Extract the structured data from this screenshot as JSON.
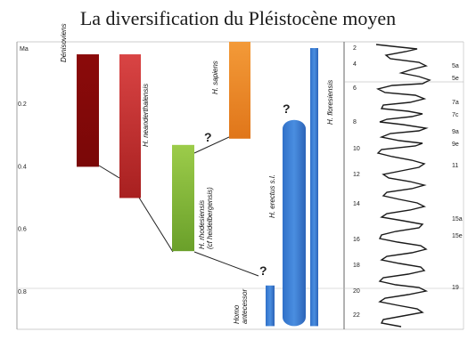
{
  "title": "La diversification du Pléistocène moyen",
  "axis": {
    "label": "Ma",
    "ticks": [
      {
        "value": 0.2,
        "label": "0.2"
      },
      {
        "value": 0.4,
        "label": "0.4"
      },
      {
        "value": 0.6,
        "label": "0.6"
      },
      {
        "value": 0.8,
        "label": "0.8"
      }
    ]
  },
  "species": [
    {
      "id": "denisoviens",
      "label": "Dénisoviens",
      "start_ma": 0.4,
      "end_ma": 0.04,
      "color": "#8b0a0a",
      "color2": "#a01515"
    },
    {
      "id": "neanderthalensis",
      "label": "H. neanderthalensis",
      "start_ma": 0.5,
      "end_ma": 0.04,
      "color": "#d23a3a",
      "color2": "#b82828"
    },
    {
      "id": "rhodesiensis",
      "label": "H. rhodesiensis",
      "label2": "(cf heidelbergensis)",
      "start_ma": 0.67,
      "end_ma": 0.33,
      "color": "#8cc43c",
      "color2": "#6ba82a"
    },
    {
      "id": "sapiens",
      "label": "H. sapiens",
      "start_ma": 0.31,
      "end_ma": 0.0,
      "color": "#f08c2a",
      "color2": "#e07818"
    },
    {
      "id": "antecessor",
      "label": "Homo",
      "label2": "antecessor",
      "start_ma": 0.91,
      "end_ma": 0.78,
      "color": "#4a88d8",
      "color2": "#3a78c8"
    },
    {
      "id": "erectus",
      "label": "H. erectus s.l.",
      "start_ma": 0.91,
      "end_ma": 0.25,
      "color": "#3a7ad0",
      "color2": "#2c6ac0"
    },
    {
      "id": "floresiensis",
      "label": "H. floresiensis",
      "start_ma": 0.91,
      "end_ma": 0.02,
      "color": "#4a88d8",
      "color2": "#3a78c8"
    }
  ],
  "question_marks": [
    "?",
    "?",
    "?"
  ],
  "isotope_stages": [
    "2",
    "4",
    "5a",
    "5e",
    "6",
    "7a",
    "7c",
    "8",
    "9a",
    "9e",
    "10",
    "11",
    "12",
    "14",
    "15a",
    "15e",
    "16",
    "18",
    "19",
    "20",
    "22"
  ]
}
